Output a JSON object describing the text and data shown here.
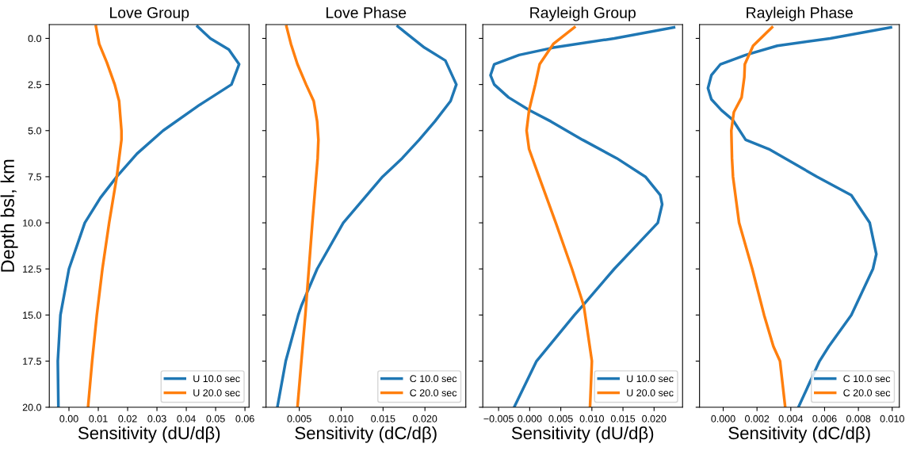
{
  "chart_data": [
    {
      "type": "line",
      "title": "Love Group",
      "xlabel": "Sensitivity (dU/dβ)",
      "ylabel": "Depth bsl, km",
      "xlim": [
        -0.0067,
        0.0614
      ],
      "ylim": [
        20,
        -0.75
      ],
      "xticks": [
        {
          "value": 0,
          "label": "0.00"
        },
        {
          "value": 0.01,
          "label": "0.01"
        },
        {
          "value": 0.02,
          "label": "0.02"
        },
        {
          "value": 0.03,
          "label": "0.03"
        },
        {
          "value": 0.04,
          "label": "0.04"
        },
        {
          "value": 0.05,
          "label": "0.05"
        },
        {
          "value": 0.06,
          "label": "0.06"
        }
      ],
      "yticks": [
        {
          "value": 0,
          "label": "0.0"
        },
        2.5,
        {
          "value": 5,
          "label": "5.0"
        },
        7.5,
        {
          "value": 10,
          "label": "10.0"
        },
        12.5,
        {
          "value": 15,
          "label": "15.0"
        },
        17.5,
        {
          "value": 20,
          "label": "20.0"
        }
      ],
      "legend": "bottom right",
      "grid": false,
      "series": [
        {
          "name": "U 10.0 sec",
          "color": "#1f77b4",
          "x": [
            0.0438,
            0.0482,
            0.0545,
            0.058,
            0.0554,
            0.0446,
            0.0321,
            0.0232,
            0.0163,
            0.0107,
            0.0054,
            0.0,
            -0.0029,
            -0.0038,
            -0.0036
          ],
          "values": [
            -0.65,
            0,
            0.6,
            1.4,
            2.5,
            3.6,
            5.0,
            6.25,
            7.5,
            8.65,
            10,
            12.5,
            15,
            17.5,
            20
          ]
        },
        {
          "name": "U 20.0 sec",
          "color": "#ff7f0e",
          "x": [
            0.0092,
            0.0103,
            0.0129,
            0.0156,
            0.0171,
            0.0179,
            0.0179,
            0.0163,
            0.0137,
            0.0114,
            0.0095,
            0.0079,
            0.0065
          ],
          "values": [
            -0.65,
            0.3,
            1.3,
            2.5,
            3.4,
            5.0,
            5.5,
            7.5,
            10,
            12.5,
            15,
            17.5,
            20
          ]
        }
      ]
    },
    {
      "type": "line",
      "title": "Love Phase",
      "xlabel": "Sensitivity (dC/dβ)",
      "xlim": [
        0.00103,
        0.02488
      ],
      "ylim": [
        20,
        -0.75
      ],
      "tick_labels": "x",
      "xticks": [
        {
          "value": 0.005,
          "label": "0.005"
        },
        {
          "value": 0.01,
          "label": "0.010"
        },
        {
          "value": 0.015,
          "label": "0.015"
        },
        {
          "value": 0.02,
          "label": "0.020"
        }
      ],
      "yticks": [
        {
          "value": 0,
          "label": null
        },
        {
          "value": 2.5,
          "label": null
        },
        {
          "value": 5,
          "label": null
        },
        {
          "value": 7.5,
          "label": null
        },
        {
          "value": 10,
          "label": null
        },
        {
          "value": 12.5,
          "label": null
        },
        {
          "value": 15,
          "label": null
        },
        {
          "value": 17.5,
          "label": null
        },
        {
          "value": 20,
          "label": null
        }
      ],
      "legend": "bottom right",
      "grid": false,
      "series": [
        {
          "name": "C 10.0 sec",
          "color": "#1f77b4",
          "x": [
            0.01675,
            0.01994,
            0.02244,
            0.02375,
            0.02306,
            0.02119,
            0.01931,
            0.01728,
            0.01494,
            0.01025,
            0.00713,
            0.00525,
            0.00488,
            0.00338,
            0.00238
          ],
          "values": [
            -0.65,
            0.5,
            1.2,
            2.5,
            3.4,
            4.5,
            5.5,
            6.5,
            7.5,
            10,
            12.5,
            14.5,
            15,
            17.5,
            20
          ]
        },
        {
          "name": "C 20.0 sec",
          "color": "#ff7f0e",
          "x": [
            0.00347,
            0.004,
            0.00478,
            0.00581,
            0.00672,
            0.00713,
            0.00728,
            0.00719,
            0.00656,
            0.00572,
            0.00478
          ],
          "values": [
            -0.65,
            0.3,
            1.4,
            2.5,
            3.4,
            4.5,
            5.5,
            6.5,
            10,
            15,
            20
          ]
        }
      ]
    },
    {
      "type": "line",
      "title": "Rayleigh Group",
      "xlabel": "Sensitivity (dU/dβ)",
      "xlim": [
        -0.00754,
        0.02458
      ],
      "ylim": [
        20,
        -0.75
      ],
      "tick_labels": "x",
      "xticks": [
        {
          "value": -0.005,
          "label": "−0.005"
        },
        {
          "value": 0,
          "label": "0.000"
        },
        {
          "value": 0.005,
          "label": "0.005"
        },
        {
          "value": 0.01,
          "label": "0.010"
        },
        {
          "value": 0.015,
          "label": "0.015"
        },
        {
          "value": 0.02,
          "label": "0.020"
        }
      ],
      "yticks": [
        {
          "value": 0,
          "label": null
        },
        {
          "value": 2.5,
          "label": null
        },
        {
          "value": 5,
          "label": null
        },
        {
          "value": 7.5,
          "label": null
        },
        {
          "value": 10,
          "label": null
        },
        {
          "value": 12.5,
          "label": null
        },
        {
          "value": 15,
          "label": null
        },
        {
          "value": 17.5,
          "label": null
        },
        {
          "value": 20,
          "label": null
        }
      ],
      "legend": "bottom right",
      "grid": false,
      "series": [
        {
          "name": "U 10.0 sec",
          "color": "#1f77b4",
          "x": [
            0.0232,
            0.0136,
            0.0038,
            -0.0017,
            -0.0057,
            -0.0063,
            -0.0057,
            -0.0034,
            0.0,
            0.0034,
            0.0085,
            0.014,
            0.0186,
            0.021,
            0.0213,
            0.0206,
            0.0178,
            0.0136,
            0.0085,
            0.0072,
            0.0011,
            -0.0025
          ],
          "values": [
            -0.6,
            0,
            0.5,
            0.9,
            1.4,
            2.0,
            2.5,
            3.2,
            3.9,
            4.5,
            5.5,
            6.5,
            7.5,
            8.5,
            9.0,
            10,
            11,
            12.5,
            14.5,
            15,
            17.5,
            20
          ]
        },
        {
          "name": "U 20.0 sec",
          "color": "#ff7f0e",
          "x": [
            0.0072,
            0.0038,
            0.0016,
            0.0009,
            -0.0001,
            -0.0005,
            -0.0001,
            0.0015,
            0.0042,
            0.0068,
            0.0087,
            0.01,
            0.0097
          ],
          "values": [
            -0.6,
            0.3,
            1.4,
            2.5,
            3.9,
            5.0,
            6.0,
            7.5,
            10,
            12.5,
            14.5,
            17.5,
            20
          ]
        }
      ]
    },
    {
      "type": "line",
      "title": "Rayleigh Phase",
      "xlabel": "Sensitivity (dC/dβ)",
      "xlim": [
        -0.0014,
        0.01042
      ],
      "ylim": [
        20,
        -0.75
      ],
      "tick_labels": "x",
      "xticks": [
        {
          "value": 0,
          "label": "0.000"
        },
        {
          "value": 0.002,
          "label": "0.002"
        },
        {
          "value": 0.004,
          "label": "0.004"
        },
        {
          "value": 0.006,
          "label": "0.006"
        },
        {
          "value": 0.008,
          "label": "0.008"
        },
        {
          "value": 0.01,
          "label": "0.010"
        }
      ],
      "yticks": [
        {
          "value": 0,
          "label": null
        },
        {
          "value": 2.5,
          "label": null
        },
        {
          "value": 5,
          "label": null
        },
        {
          "value": 7.5,
          "label": null
        },
        {
          "value": 10,
          "label": null
        },
        {
          "value": 12.5,
          "label": null
        },
        {
          "value": 15,
          "label": null
        },
        {
          "value": 17.5,
          "label": null
        },
        {
          "value": 20,
          "label": null
        }
      ],
      "legend": "bottom right",
      "grid": false,
      "series": [
        {
          "name": "C 10.0 sec",
          "color": "#1f77b4",
          "x": [
            0.00992,
            0.00633,
            0.0032,
            0.00133,
            -0.00016,
            -0.0007,
            -0.0009,
            -0.0007,
            -0.0001,
            0.00055,
            0.00133,
            0.0027,
            0.00555,
            0.00758,
            0.00867,
            0.00906,
            0.00886,
            0.00758,
            0.00625,
            0.0057,
            0.00445
          ],
          "values": [
            -0.6,
            0,
            0.4,
            0.9,
            1.4,
            2.0,
            2.7,
            3.3,
            3.9,
            4.4,
            5.5,
            6.0,
            7.5,
            8.5,
            10,
            11.7,
            12.5,
            15,
            16.7,
            17.5,
            20
          ]
        },
        {
          "name": "C 20.0 sec",
          "color": "#ff7f0e",
          "x": [
            0.00289,
            0.00177,
            0.00128,
            0.00125,
            0.00109,
            0.00063,
            0.00048,
            0.00052,
            0.00058,
            0.00094,
            0.00172,
            0.00242,
            0.00297,
            0.00336,
            0.00367
          ],
          "values": [
            -0.6,
            0.4,
            1.4,
            2.1,
            3.2,
            4.0,
            5.0,
            6.5,
            7.5,
            10,
            12.5,
            15,
            16.7,
            17.5,
            20
          ]
        }
      ]
    }
  ]
}
